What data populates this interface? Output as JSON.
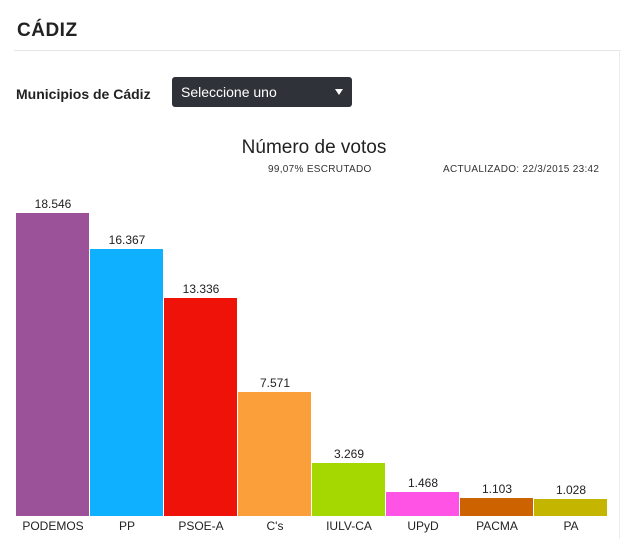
{
  "page": {
    "title": "CÁDIZ",
    "filter_label": "Municipios de Cádiz",
    "select_value": "Seleccione uno",
    "scrutinized_pct": "99,07%",
    "scrutinized_word": "ESCRUTADO",
    "updated_label": "ACTUALIZADO:",
    "updated_value": "22/3/2015 23:42"
  },
  "chart_data": {
    "type": "bar",
    "title": "Número de votos",
    "xlabel": "",
    "ylabel": "",
    "ylim": [
      0,
      18546
    ],
    "categories": [
      "PODEMOS",
      "PP",
      "PSOE-A",
      "C's",
      "IULV-CA",
      "UPyD",
      "PACMA",
      "PA"
    ],
    "values": [
      18546,
      16367,
      13336,
      7571,
      3269,
      1468,
      1103,
      1028
    ],
    "value_labels": [
      "18.546",
      "16.367",
      "13.336",
      "7.571",
      "3.269",
      "1.468",
      "1.103",
      "1.028"
    ],
    "colors": [
      "#9b5299",
      "#0fb0ff",
      "#ee1208",
      "#fb9f3a",
      "#a5d800",
      "#ff53e6",
      "#cc6300",
      "#c4b600"
    ]
  }
}
